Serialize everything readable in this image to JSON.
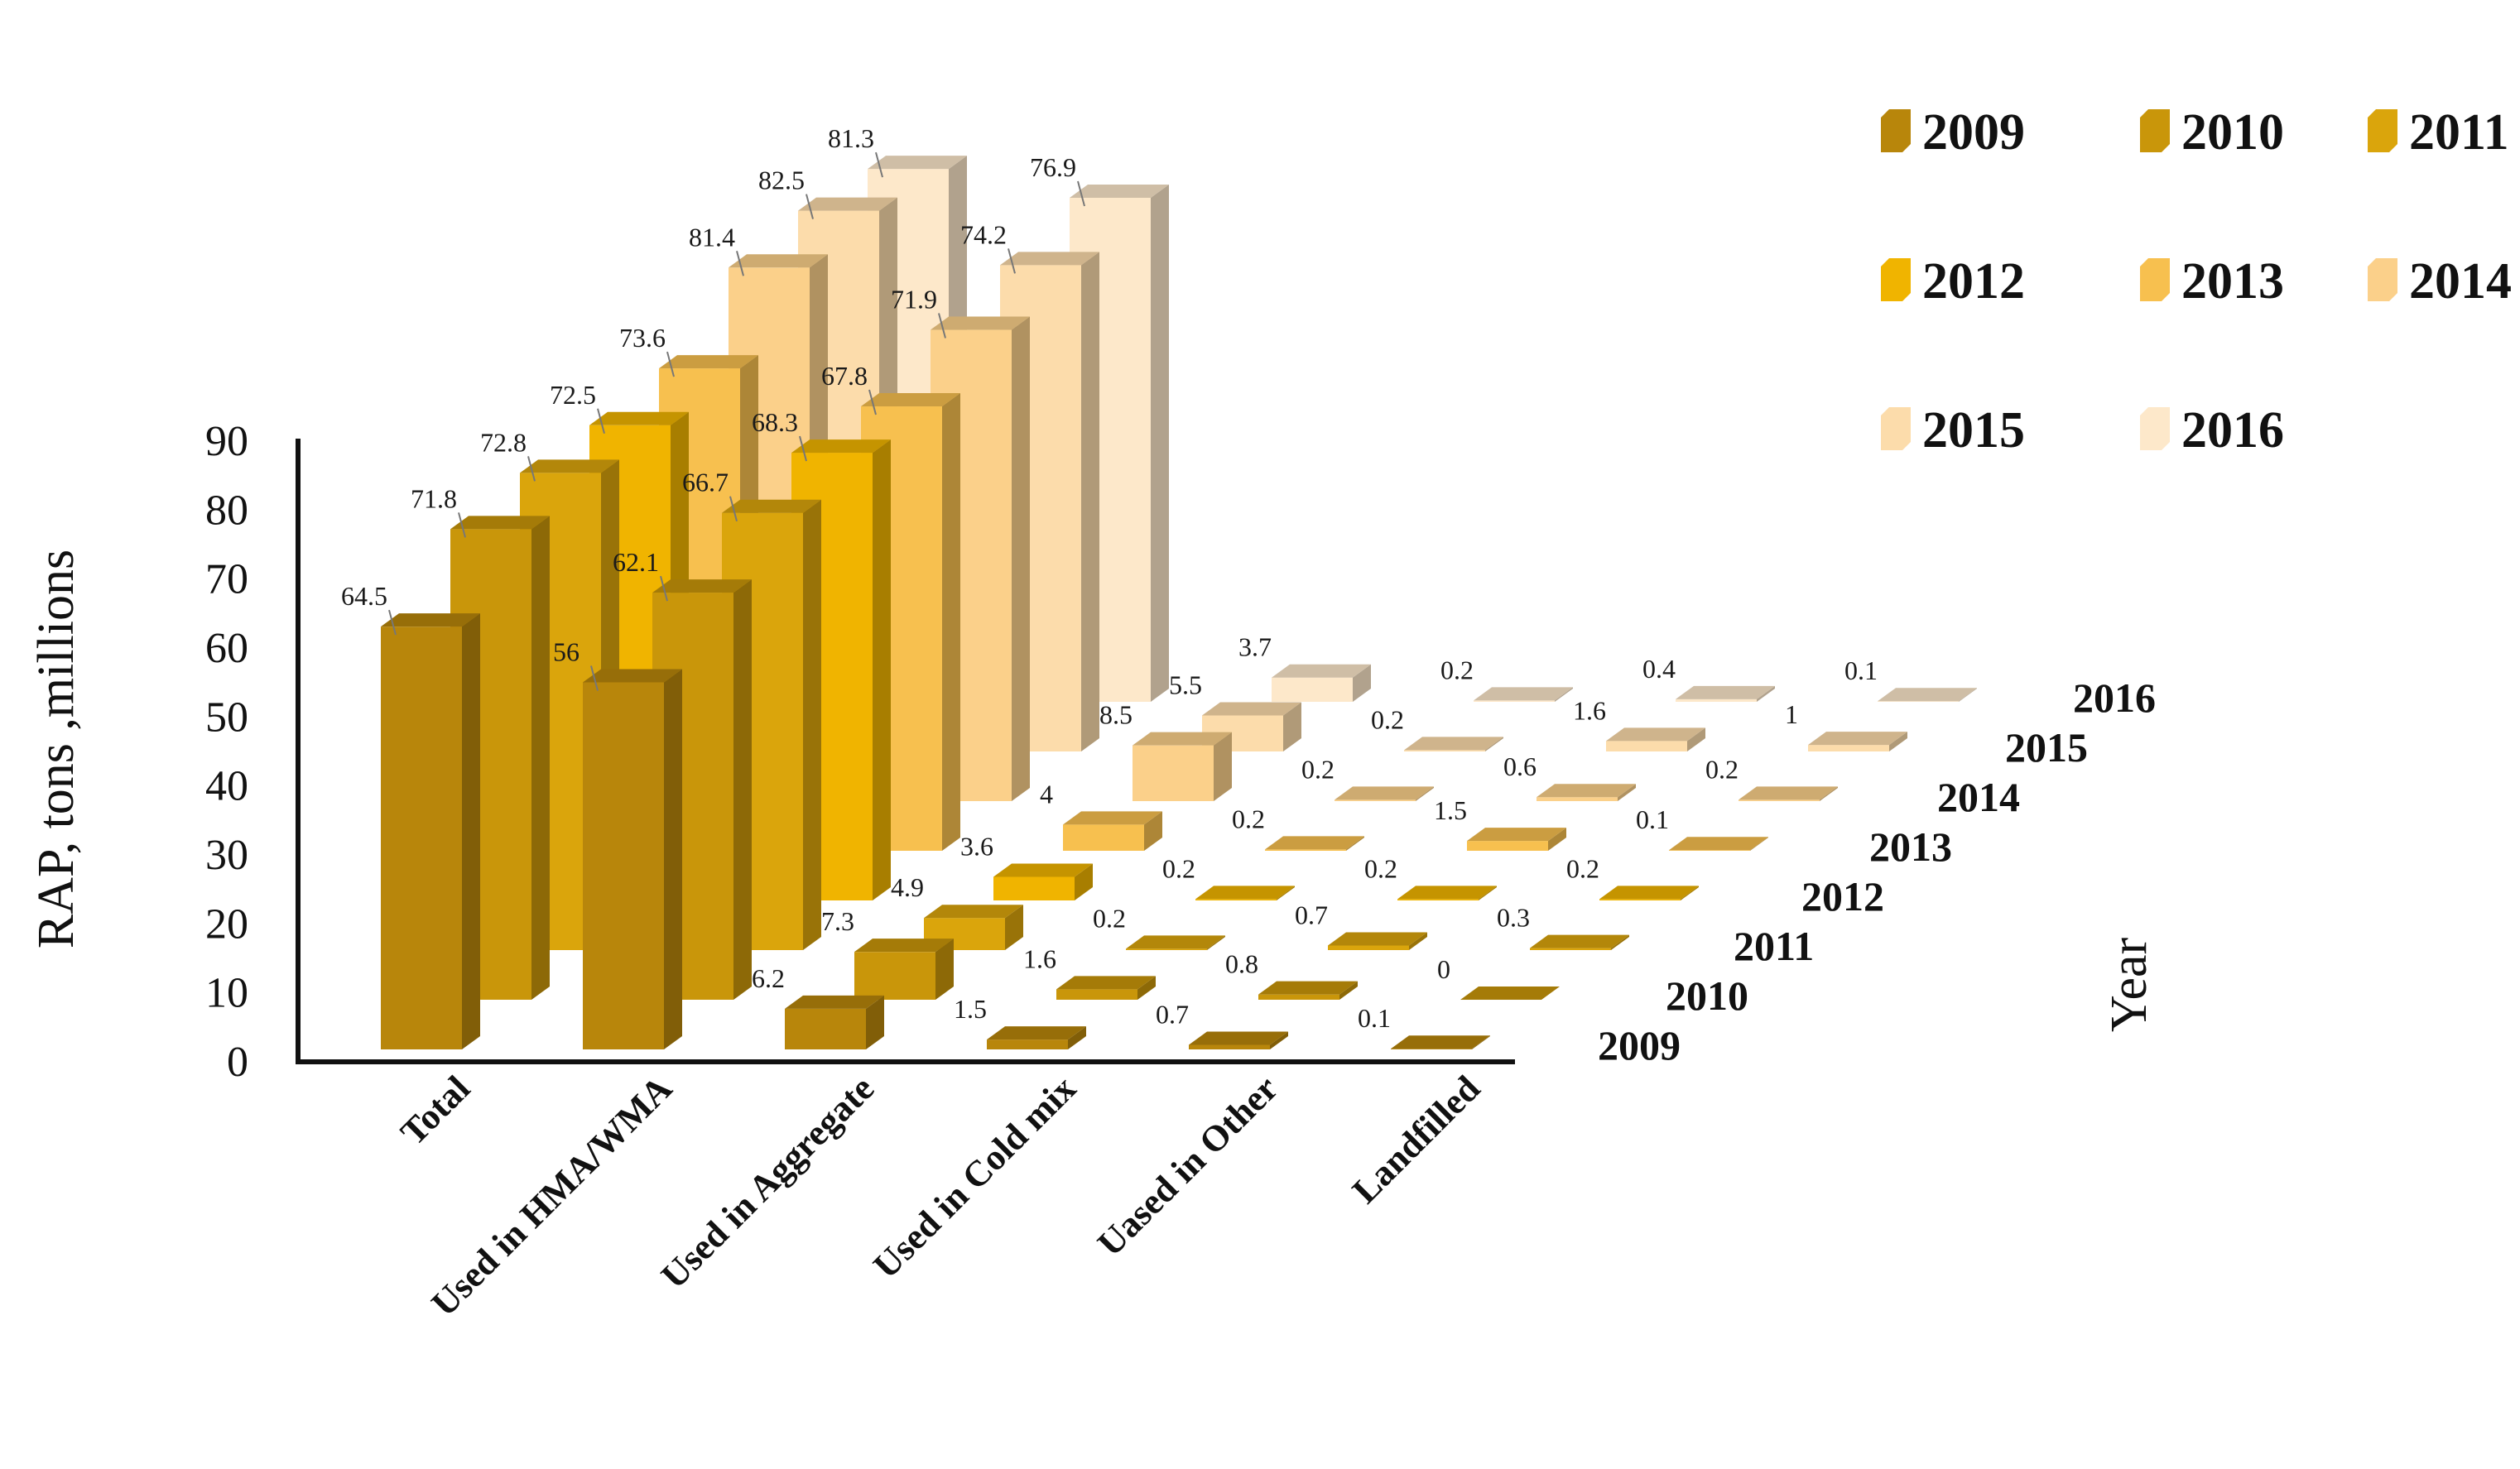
{
  "chart_data": {
    "type": "bar",
    "subtype": "3d-column",
    "categories": [
      "Total",
      "Used in HMA/WMA",
      "Used in Aggregate",
      "Used in Cold mix",
      "Uased in Other",
      "Landfilled"
    ],
    "series": [
      {
        "name": "2009",
        "color": "#b8860b",
        "values": [
          64.5,
          56,
          6.2,
          1.5,
          0.7,
          0.1
        ]
      },
      {
        "name": "2010",
        "color": "#c9960a",
        "values": [
          71.8,
          62.1,
          7.3,
          1.6,
          0.8,
          0
        ]
      },
      {
        "name": "2011",
        "color": "#daa50c",
        "values": [
          72.8,
          66.7,
          4.9,
          0.2,
          0.7,
          0.3
        ]
      },
      {
        "name": "2012",
        "color": "#f0b400",
        "values": [
          72.5,
          68.3,
          3.6,
          0.2,
          0.2,
          0.2
        ]
      },
      {
        "name": "2013",
        "color": "#f7c04f",
        "values": [
          73.6,
          67.8,
          4,
          0.2,
          1.5,
          0.1
        ]
      },
      {
        "name": "2014",
        "color": "#fbd08a",
        "values": [
          81.4,
          71.9,
          8.5,
          0.2,
          0.6,
          0.2
        ]
      },
      {
        "name": "2015",
        "color": "#fcdcab",
        "values": [
          82.5,
          74.2,
          5.5,
          0.2,
          1.6,
          1
        ]
      },
      {
        "name": "2016",
        "color": "#fde8ca",
        "values": [
          81.3,
          76.9,
          3.7,
          0.2,
          0.4,
          0.1
        ]
      }
    ],
    "ylabel": "RAP, tons ,millions",
    "zlabel": "Year",
    "ylim": [
      0,
      90
    ],
    "yticks": [
      "0",
      "10",
      "20",
      "30",
      "40",
      "50",
      "60",
      "70",
      "80",
      "90"
    ],
    "legend_position": "top-right"
  }
}
